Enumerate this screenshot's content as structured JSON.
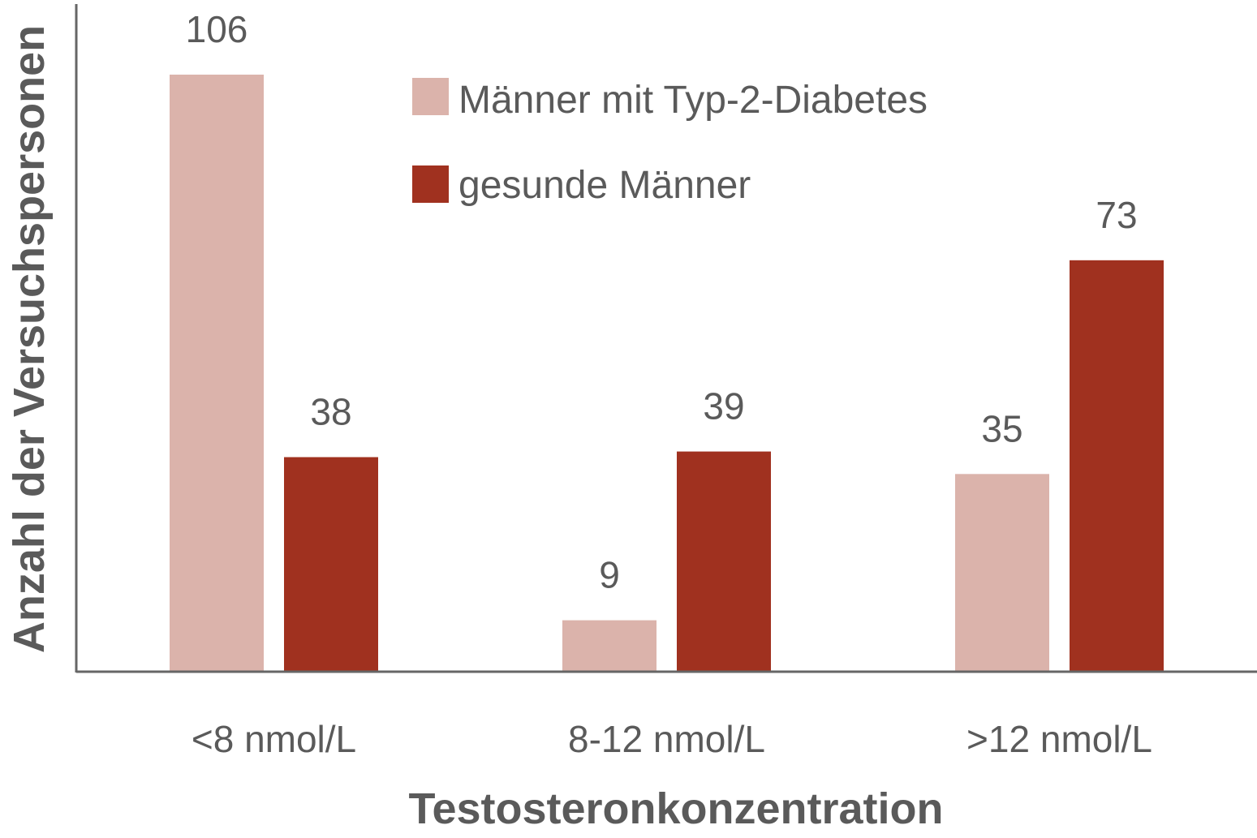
{
  "chart_data": {
    "type": "bar",
    "title": "",
    "xlabel": "Testosteronkonzentration",
    "ylabel": "Anzahl der Versuchspersonen",
    "categories": [
      "<8 nmol/L",
      "8-12 nmol/L",
      ">12 nmol/L"
    ],
    "series": [
      {
        "name": "Männer mit Typ-2-Diabetes",
        "values": [
          106,
          9,
          35
        ],
        "color": "#dbb3ab"
      },
      {
        "name": "gesunde Männer",
        "values": [
          38,
          39,
          73
        ],
        "color": "#a0311f"
      }
    ],
    "ylim": [
      0,
      106
    ],
    "grid": false,
    "legend": "top-center",
    "data_labels": true
  }
}
